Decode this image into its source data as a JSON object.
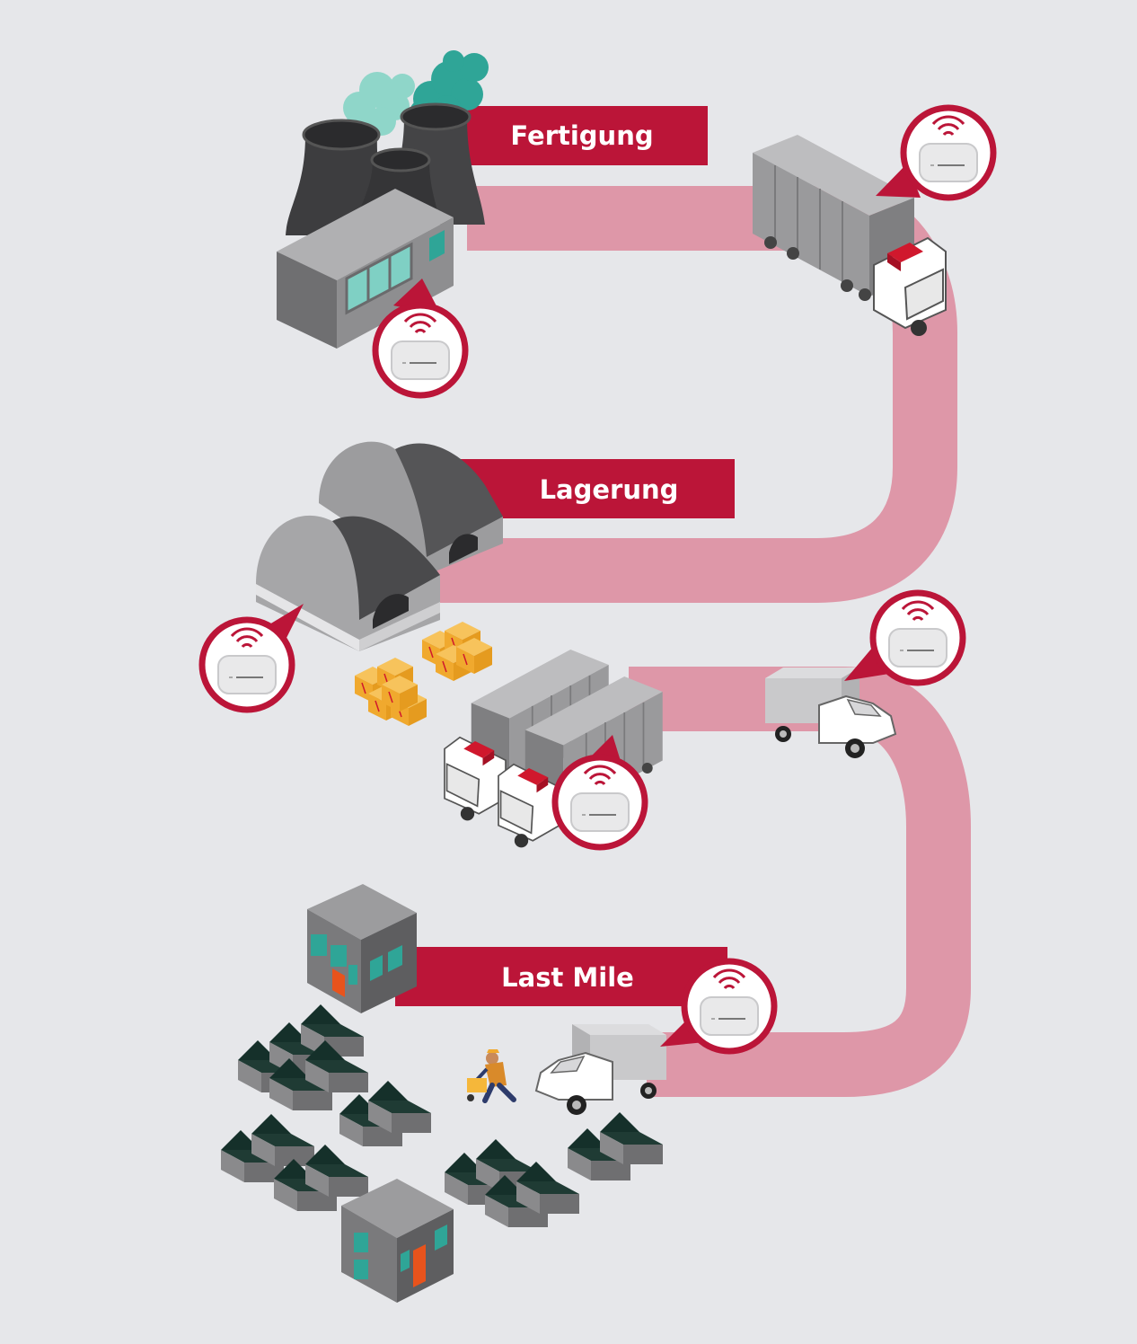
{
  "stages": [
    {
      "id": "fertigung",
      "label": "Fertigung"
    },
    {
      "id": "lagerung",
      "label": "Lagerung"
    },
    {
      "id": "last-mile",
      "label": "Last Mile"
    }
  ],
  "colors": {
    "background": "#e6e7ea",
    "accent": "#bb1538",
    "path": "#de97a8",
    "building_dark": "#3d3d3f",
    "building_grey": "#8e8e90",
    "roof_dark": "#15302a",
    "smoke": "#2fa597",
    "window": "#7fd0c4"
  },
  "icons": {
    "sensor": "wireless-sensor-icon",
    "factory": "factory-icon",
    "truck": "semi-truck-icon",
    "warehouse": "warehouse-icon",
    "van": "delivery-van-icon",
    "boxes": "parcel-boxes-icon",
    "courier": "courier-person-icon",
    "houses": "house-icon"
  }
}
